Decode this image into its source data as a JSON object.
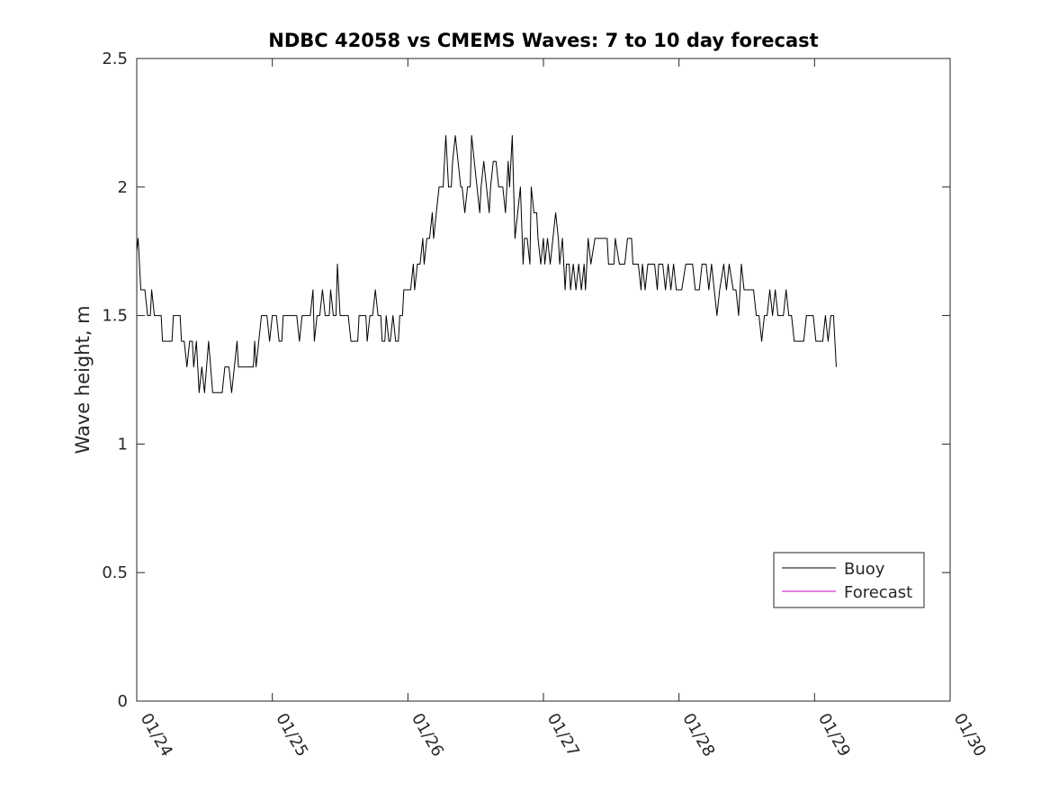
{
  "chart_data": {
    "type": "line",
    "title": "NDBC 42058 vs CMEMS Waves: 7 to 10 day forecast",
    "xlabel": "",
    "ylabel": "Wave height, m",
    "xlim": [
      0,
      6
    ],
    "ylim": [
      0,
      2.5
    ],
    "x_ticks": [
      0,
      1,
      2,
      3,
      4,
      5,
      6
    ],
    "x_tick_labels": [
      "01/24",
      "01/25",
      "01/26",
      "01/27",
      "01/28",
      "01/29",
      "01/30"
    ],
    "y_ticks": [
      0,
      0.5,
      1,
      1.5,
      2,
      2.5
    ],
    "y_tick_labels": [
      "0",
      "0.5",
      "1",
      "1.5",
      "2",
      "2.5"
    ],
    "grid": false,
    "legend_position": "bottom-right",
    "series": [
      {
        "name": "Buoy",
        "color": "#000000",
        "x_unit": "days since 01/24",
        "points": [
          [
            0.0,
            1.75
          ],
          [
            0.01,
            1.8
          ],
          [
            0.03,
            1.6
          ],
          [
            0.06,
            1.6
          ],
          [
            0.08,
            1.5
          ],
          [
            0.1,
            1.5
          ],
          [
            0.11,
            1.6
          ],
          [
            0.13,
            1.5
          ],
          [
            0.18,
            1.5
          ],
          [
            0.19,
            1.4
          ],
          [
            0.26,
            1.4
          ],
          [
            0.27,
            1.5
          ],
          [
            0.32,
            1.5
          ],
          [
            0.33,
            1.4
          ],
          [
            0.35,
            1.4
          ],
          [
            0.37,
            1.3
          ],
          [
            0.39,
            1.4
          ],
          [
            0.41,
            1.4
          ],
          [
            0.42,
            1.3
          ],
          [
            0.44,
            1.4
          ],
          [
            0.46,
            1.2
          ],
          [
            0.48,
            1.3
          ],
          [
            0.5,
            1.2
          ],
          [
            0.53,
            1.4
          ],
          [
            0.56,
            1.2
          ],
          [
            0.63,
            1.2
          ],
          [
            0.65,
            1.3
          ],
          [
            0.68,
            1.3
          ],
          [
            0.7,
            1.2
          ],
          [
            0.72,
            1.3
          ],
          [
            0.74,
            1.4
          ],
          [
            0.75,
            1.3
          ],
          [
            0.86,
            1.3
          ],
          [
            0.87,
            1.4
          ],
          [
            0.88,
            1.3
          ],
          [
            0.92,
            1.5
          ],
          [
            0.96,
            1.5
          ],
          [
            0.98,
            1.4
          ],
          [
            1.0,
            1.5
          ],
          [
            1.03,
            1.5
          ],
          [
            1.05,
            1.4
          ],
          [
            1.07,
            1.4
          ],
          [
            1.08,
            1.5
          ],
          [
            1.12,
            1.5
          ],
          [
            1.15,
            1.5
          ],
          [
            1.18,
            1.5
          ],
          [
            1.2,
            1.4
          ],
          [
            1.22,
            1.5
          ],
          [
            1.28,
            1.5
          ],
          [
            1.3,
            1.6
          ],
          [
            1.31,
            1.4
          ],
          [
            1.33,
            1.5
          ],
          [
            1.35,
            1.5
          ],
          [
            1.37,
            1.6
          ],
          [
            1.39,
            1.5
          ],
          [
            1.42,
            1.5
          ],
          [
            1.43,
            1.6
          ],
          [
            1.45,
            1.5
          ],
          [
            1.47,
            1.5
          ],
          [
            1.48,
            1.7
          ],
          [
            1.5,
            1.5
          ],
          [
            1.56,
            1.5
          ],
          [
            1.58,
            1.4
          ],
          [
            1.63,
            1.4
          ],
          [
            1.64,
            1.5
          ],
          [
            1.69,
            1.5
          ],
          [
            1.7,
            1.4
          ],
          [
            1.72,
            1.5
          ],
          [
            1.74,
            1.5
          ],
          [
            1.76,
            1.6
          ],
          [
            1.78,
            1.5
          ],
          [
            1.8,
            1.5
          ],
          [
            1.81,
            1.4
          ],
          [
            1.83,
            1.4
          ],
          [
            1.84,
            1.5
          ],
          [
            1.86,
            1.4
          ],
          [
            1.87,
            1.4
          ],
          [
            1.89,
            1.5
          ],
          [
            1.91,
            1.4
          ],
          [
            1.93,
            1.4
          ],
          [
            1.94,
            1.5
          ],
          [
            1.96,
            1.5
          ],
          [
            1.97,
            1.6
          ],
          [
            2.02,
            1.6
          ],
          [
            2.04,
            1.7
          ],
          [
            2.05,
            1.6
          ],
          [
            2.07,
            1.7
          ],
          [
            2.09,
            1.7
          ],
          [
            2.11,
            1.8
          ],
          [
            2.12,
            1.7
          ],
          [
            2.14,
            1.8
          ],
          [
            2.16,
            1.8
          ],
          [
            2.18,
            1.9
          ],
          [
            2.19,
            1.8
          ],
          [
            2.21,
            1.9
          ],
          [
            2.23,
            2.0
          ],
          [
            2.26,
            2.0
          ],
          [
            2.28,
            2.2
          ],
          [
            2.3,
            2.0
          ],
          [
            2.32,
            2.0
          ],
          [
            2.33,
            2.1
          ],
          [
            2.35,
            2.2
          ],
          [
            2.37,
            2.1
          ],
          [
            2.39,
            2.0
          ],
          [
            2.4,
            2.0
          ],
          [
            2.42,
            1.9
          ],
          [
            2.44,
            2.0
          ],
          [
            2.46,
            2.0
          ],
          [
            2.47,
            2.2
          ],
          [
            2.49,
            2.1
          ],
          [
            2.51,
            2.0
          ],
          [
            2.53,
            1.9
          ],
          [
            2.54,
            2.0
          ],
          [
            2.56,
            2.1
          ],
          [
            2.58,
            2.0
          ],
          [
            2.6,
            1.9
          ],
          [
            2.61,
            2.0
          ],
          [
            2.63,
            2.1
          ],
          [
            2.65,
            2.1
          ],
          [
            2.67,
            2.0
          ],
          [
            2.7,
            2.0
          ],
          [
            2.72,
            1.9
          ],
          [
            2.74,
            2.1
          ],
          [
            2.75,
            2.0
          ],
          [
            2.77,
            2.2
          ],
          [
            2.79,
            1.8
          ],
          [
            2.81,
            1.9
          ],
          [
            2.83,
            2.0
          ],
          [
            2.85,
            1.7
          ],
          [
            2.86,
            1.8
          ],
          [
            2.88,
            1.8
          ],
          [
            2.9,
            1.7
          ],
          [
            2.91,
            2.0
          ],
          [
            2.93,
            1.9
          ],
          [
            2.95,
            1.9
          ],
          [
            2.96,
            1.8
          ],
          [
            2.98,
            1.7
          ],
          [
            3.0,
            1.8
          ],
          [
            3.01,
            1.7
          ],
          [
            3.03,
            1.8
          ],
          [
            3.05,
            1.7
          ],
          [
            3.07,
            1.8
          ],
          [
            3.09,
            1.9
          ],
          [
            3.11,
            1.8
          ],
          [
            3.12,
            1.7
          ],
          [
            3.14,
            1.8
          ],
          [
            3.16,
            1.6
          ],
          [
            3.17,
            1.7
          ],
          [
            3.19,
            1.7
          ],
          [
            3.2,
            1.6
          ],
          [
            3.22,
            1.7
          ],
          [
            3.24,
            1.6
          ],
          [
            3.26,
            1.7
          ],
          [
            3.28,
            1.6
          ],
          [
            3.3,
            1.7
          ],
          [
            3.31,
            1.6
          ],
          [
            3.33,
            1.8
          ],
          [
            3.35,
            1.7
          ],
          [
            3.38,
            1.8
          ],
          [
            3.47,
            1.8
          ],
          [
            3.48,
            1.7
          ],
          [
            3.52,
            1.7
          ],
          [
            3.53,
            1.8
          ],
          [
            3.56,
            1.7
          ],
          [
            3.6,
            1.7
          ],
          [
            3.62,
            1.8
          ],
          [
            3.65,
            1.8
          ],
          [
            3.66,
            1.7
          ],
          [
            3.7,
            1.7
          ],
          [
            3.72,
            1.6
          ],
          [
            3.73,
            1.7
          ],
          [
            3.75,
            1.6
          ],
          [
            3.77,
            1.7
          ],
          [
            3.8,
            1.7
          ],
          [
            3.82,
            1.7
          ],
          [
            3.84,
            1.6
          ],
          [
            3.85,
            1.7
          ],
          [
            3.88,
            1.7
          ],
          [
            3.9,
            1.6
          ],
          [
            3.92,
            1.7
          ],
          [
            3.94,
            1.6
          ],
          [
            3.96,
            1.7
          ],
          [
            3.98,
            1.6
          ],
          [
            4.02,
            1.6
          ],
          [
            4.05,
            1.7
          ],
          [
            4.1,
            1.7
          ],
          [
            4.12,
            1.6
          ],
          [
            4.15,
            1.6
          ],
          [
            4.17,
            1.7
          ],
          [
            4.2,
            1.7
          ],
          [
            4.22,
            1.6
          ],
          [
            4.24,
            1.7
          ],
          [
            4.26,
            1.6
          ],
          [
            4.28,
            1.5
          ],
          [
            4.3,
            1.6
          ],
          [
            4.33,
            1.7
          ],
          [
            4.35,
            1.6
          ],
          [
            4.37,
            1.7
          ],
          [
            4.4,
            1.6
          ],
          [
            4.42,
            1.6
          ],
          [
            4.44,
            1.5
          ],
          [
            4.46,
            1.7
          ],
          [
            4.48,
            1.6
          ],
          [
            4.55,
            1.6
          ],
          [
            4.57,
            1.5
          ],
          [
            4.59,
            1.5
          ],
          [
            4.61,
            1.4
          ],
          [
            4.63,
            1.5
          ],
          [
            4.65,
            1.5
          ],
          [
            4.67,
            1.6
          ],
          [
            4.69,
            1.5
          ],
          [
            4.71,
            1.6
          ],
          [
            4.73,
            1.5
          ],
          [
            4.77,
            1.5
          ],
          [
            4.79,
            1.6
          ],
          [
            4.81,
            1.5
          ],
          [
            4.83,
            1.5
          ],
          [
            4.85,
            1.4
          ],
          [
            4.92,
            1.4
          ],
          [
            4.94,
            1.5
          ],
          [
            4.99,
            1.5
          ],
          [
            5.01,
            1.4
          ],
          [
            5.06,
            1.4
          ],
          [
            5.08,
            1.5
          ],
          [
            5.1,
            1.4
          ],
          [
            5.12,
            1.5
          ],
          [
            5.14,
            1.5
          ],
          [
            5.16,
            1.3
          ]
        ]
      },
      {
        "name": "Forecast",
        "color": "#cc00cc",
        "points": []
      }
    ]
  }
}
